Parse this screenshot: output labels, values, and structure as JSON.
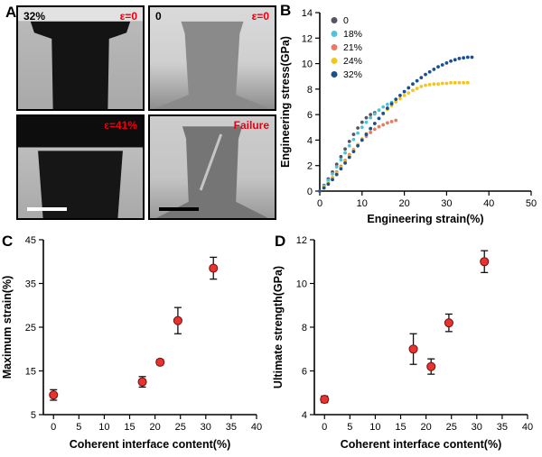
{
  "colors": {
    "accent_red": "#e8000f",
    "marker_red": "#e8332e",
    "marker_edge": "#7a1414",
    "axis_black": "#000000"
  },
  "panels": {
    "a": {
      "letter": "A",
      "micrographs": [
        {
          "top_left": "32%",
          "top_right": "ε=0"
        },
        {
          "top_left": "0",
          "top_right": "ε=0"
        },
        {
          "top_left": "",
          "top_right": "ε=41%"
        },
        {
          "top_left": "",
          "top_right": "Failure"
        }
      ]
    },
    "b": {
      "letter": "B"
    },
    "c": {
      "letter": "C"
    },
    "d": {
      "letter": "D"
    }
  },
  "chart_data": [
    {
      "panel": "B",
      "type": "line",
      "title": "",
      "xlabel": "Engineering strain(%)",
      "ylabel": "Engineering stress(GPa)",
      "xlim": [
        0,
        50
      ],
      "ylim": [
        0,
        14
      ],
      "xticks": [
        0,
        10,
        20,
        30,
        40,
        50
      ],
      "yticks": [
        0,
        2,
        4,
        6,
        8,
        10,
        12,
        14
      ],
      "grid": false,
      "legend_position": "top-left",
      "series": [
        {
          "name": "0",
          "color": "#565660",
          "x_step": 1,
          "y": [
            0,
            0.45,
            0.95,
            1.5,
            2.1,
            2.7,
            3.3,
            3.9,
            4.45,
            4.95,
            5.4,
            5.75,
            6.0,
            6.15
          ]
        },
        {
          "name": "18%",
          "color": "#4fc3d9",
          "x_step": 1,
          "y": [
            0,
            0.4,
            0.85,
            1.35,
            1.9,
            2.45,
            3.0,
            3.55,
            4.05,
            4.55,
            5.0,
            5.4,
            5.75,
            6.05,
            6.35,
            6.6,
            6.8,
            6.95
          ]
        },
        {
          "name": "21%",
          "color": "#e97c5f",
          "x_step": 1,
          "y": [
            0,
            0.3,
            0.65,
            1.05,
            1.5,
            1.95,
            2.4,
            2.85,
            3.25,
            3.65,
            4.0,
            4.3,
            4.6,
            4.85,
            5.05,
            5.2,
            5.35,
            5.45,
            5.55
          ]
        },
        {
          "name": "24%",
          "color": "#f5c51d",
          "x_step": 1,
          "y": [
            0,
            0.3,
            0.65,
            1.0,
            1.4,
            1.85,
            2.3,
            2.75,
            3.2,
            3.65,
            4.1,
            4.5,
            4.9,
            5.3,
            5.7,
            6.05,
            6.4,
            6.7,
            7.0,
            7.25,
            7.5,
            7.7,
            7.9,
            8.05,
            8.2,
            8.3,
            8.35,
            8.4,
            8.4,
            8.45,
            8.45,
            8.5,
            8.5,
            8.5,
            8.5,
            8.5
          ]
        },
        {
          "name": "32%",
          "color": "#1b4f91",
          "x_step": 1,
          "y": [
            0,
            0.25,
            0.55,
            0.9,
            1.3,
            1.75,
            2.2,
            2.65,
            3.1,
            3.55,
            4.0,
            4.45,
            4.9,
            5.3,
            5.7,
            6.1,
            6.5,
            6.85,
            7.2,
            7.5,
            7.8,
            8.1,
            8.4,
            8.65,
            8.9,
            9.15,
            9.35,
            9.55,
            9.75,
            9.9,
            10.05,
            10.2,
            10.3,
            10.4,
            10.45,
            10.5,
            10.5
          ]
        }
      ]
    },
    {
      "panel": "C",
      "type": "scatter",
      "title": "",
      "xlabel": "Coherent interface content(%)",
      "ylabel": "Maximum strain(%)",
      "xlim": [
        -2,
        40
      ],
      "ylim": [
        5,
        45
      ],
      "xticks": [
        0,
        5,
        10,
        15,
        20,
        25,
        30,
        35,
        40
      ],
      "yticks": [
        5,
        15,
        25,
        35,
        45
      ],
      "grid": false,
      "x": [
        0,
        17.5,
        21,
        24.5,
        31.5
      ],
      "y": [
        9.5,
        12.5,
        17,
        26.5,
        38.5
      ],
      "yerr": [
        1.2,
        1.2,
        0.6,
        3.0,
        2.5
      ],
      "marker_color": "#e8332e"
    },
    {
      "panel": "D",
      "type": "scatter",
      "title": "",
      "xlabel": "Coherent interface content(%)",
      "ylabel": "Ultimate strength(GPa)",
      "xlim": [
        -2,
        40
      ],
      "ylim": [
        4,
        12
      ],
      "xticks": [
        0,
        5,
        10,
        15,
        20,
        25,
        30,
        35,
        40
      ],
      "yticks": [
        4,
        6,
        8,
        10,
        12
      ],
      "grid": false,
      "x": [
        0,
        17.5,
        21,
        24.5,
        31.5
      ],
      "y": [
        4.7,
        7.0,
        6.2,
        8.2,
        11.0
      ],
      "yerr": [
        0.15,
        0.7,
        0.35,
        0.4,
        0.5
      ],
      "marker_color": "#e8332e"
    }
  ]
}
